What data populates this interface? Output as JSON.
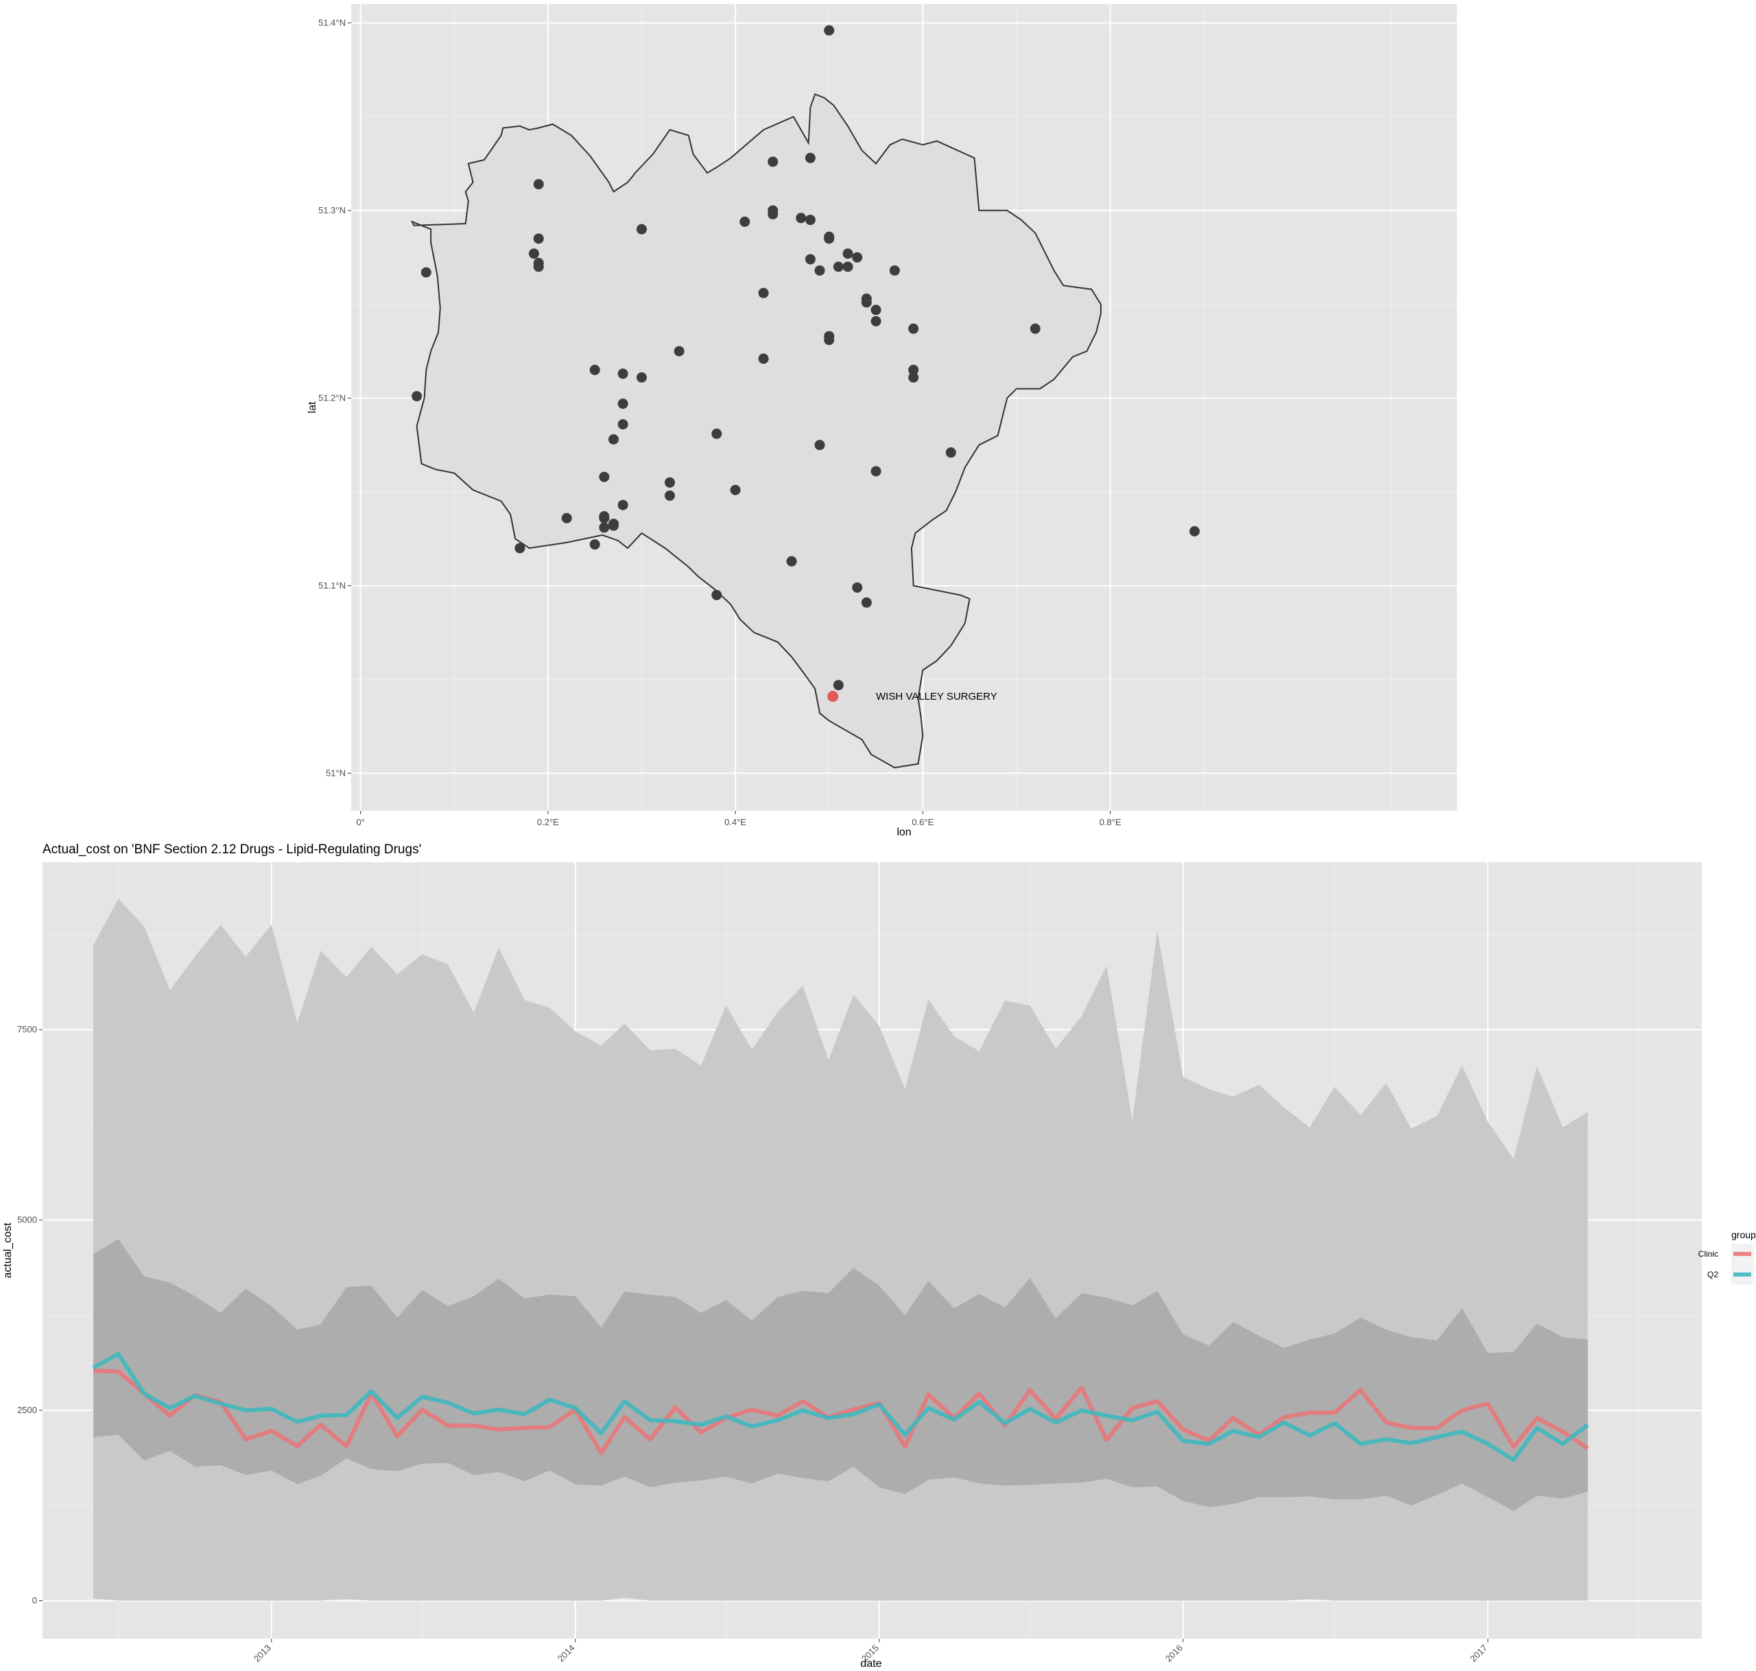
{
  "chart_data": [
    {
      "type": "scatter",
      "xlabel": "lon",
      "ylabel": "lat",
      "xlim": [
        -0.01,
        1.17
      ],
      "ylim": [
        50.98,
        51.41
      ],
      "x_ticks": [
        0,
        0.2,
        0.4,
        0.6,
        0.8
      ],
      "x_tick_labels": [
        "0°",
        "0.2°E",
        "0.4°E",
        "0.6°E",
        "0.8°E"
      ],
      "y_ticks": [
        51.0,
        51.1,
        51.2,
        51.3,
        51.4
      ],
      "y_tick_labels": [
        "51°N",
        "51.1°N",
        "51.2°N",
        "51.3°N",
        "51.4°N"
      ],
      "grid": true,
      "colors": {
        "point": "#3d3d3d",
        "highlight": "#e05a55",
        "outline": "#333333",
        "region_fill": "#dedede"
      },
      "annotation": {
        "text": "WISH VALLEY SURGERY",
        "lon": 0.55,
        "lat": 51.041
      },
      "highlight_point": {
        "lon": 0.504,
        "lat": 51.041
      },
      "boundary": [
        [
          0.065,
          51.165
        ],
        [
          0.06,
          51.185
        ],
        [
          0.068,
          51.2
        ],
        [
          0.07,
          51.215
        ],
        [
          0.075,
          51.225
        ],
        [
          0.083,
          51.235
        ],
        [
          0.085,
          51.248
        ],
        [
          0.082,
          51.265
        ],
        [
          0.075,
          51.283
        ],
        [
          0.075,
          51.29
        ],
        [
          0.055,
          51.294
        ],
        [
          0.057,
          51.292
        ],
        [
          0.112,
          51.293
        ],
        [
          0.115,
          51.305
        ],
        [
          0.112,
          51.31
        ],
        [
          0.12,
          51.315
        ],
        [
          0.115,
          51.325
        ],
        [
          0.132,
          51.327
        ],
        [
          0.15,
          51.34
        ],
        [
          0.152,
          51.344
        ],
        [
          0.17,
          51.345
        ],
        [
          0.18,
          51.343
        ],
        [
          0.19,
          51.344
        ],
        [
          0.205,
          51.346
        ],
        [
          0.225,
          51.34
        ],
        [
          0.245,
          51.329
        ],
        [
          0.265,
          51.315
        ],
        [
          0.27,
          51.31
        ],
        [
          0.285,
          51.315
        ],
        [
          0.29,
          51.318
        ],
        [
          0.293,
          51.32
        ],
        [
          0.312,
          51.33
        ],
        [
          0.33,
          51.343
        ],
        [
          0.35,
          51.34
        ],
        [
          0.355,
          51.33
        ],
        [
          0.37,
          51.32
        ],
        [
          0.38,
          51.323
        ],
        [
          0.395,
          51.328
        ],
        [
          0.43,
          51.343
        ],
        [
          0.462,
          51.35
        ],
        [
          0.478,
          51.336
        ],
        [
          0.48,
          51.355
        ],
        [
          0.485,
          51.362
        ],
        [
          0.495,
          51.36
        ],
        [
          0.505,
          51.356
        ],
        [
          0.52,
          51.345
        ],
        [
          0.535,
          51.332
        ],
        [
          0.55,
          51.325
        ],
        [
          0.565,
          51.335
        ],
        [
          0.578,
          51.338
        ],
        [
          0.6,
          51.335
        ],
        [
          0.615,
          51.337
        ],
        [
          0.655,
          51.328
        ],
        [
          0.66,
          51.3
        ],
        [
          0.69,
          51.3
        ],
        [
          0.705,
          51.295
        ],
        [
          0.72,
          51.288
        ],
        [
          0.74,
          51.268
        ],
        [
          0.75,
          51.26
        ],
        [
          0.78,
          51.258
        ],
        [
          0.79,
          51.25
        ],
        [
          0.79,
          51.245
        ],
        [
          0.785,
          51.235
        ],
        [
          0.775,
          51.225
        ],
        [
          0.76,
          51.222
        ],
        [
          0.74,
          51.21
        ],
        [
          0.725,
          51.205
        ],
        [
          0.7,
          51.205
        ],
        [
          0.69,
          51.2
        ],
        [
          0.685,
          51.19
        ],
        [
          0.68,
          51.18
        ],
        [
          0.66,
          51.175
        ],
        [
          0.645,
          51.163
        ],
        [
          0.635,
          51.15
        ],
        [
          0.625,
          51.14
        ],
        [
          0.61,
          51.135
        ],
        [
          0.592,
          51.128
        ],
        [
          0.588,
          51.12
        ],
        [
          0.59,
          51.1
        ],
        [
          0.64,
          51.095
        ],
        [
          0.65,
          51.093
        ],
        [
          0.645,
          51.08
        ],
        [
          0.63,
          51.068
        ],
        [
          0.615,
          51.06
        ],
        [
          0.6,
          51.055
        ],
        [
          0.595,
          51.04
        ],
        [
          0.598,
          51.03
        ],
        [
          0.6,
          51.02
        ],
        [
          0.595,
          51.005
        ],
        [
          0.57,
          51.003
        ],
        [
          0.545,
          51.01
        ],
        [
          0.535,
          51.018
        ],
        [
          0.5,
          51.028
        ],
        [
          0.49,
          51.032
        ],
        [
          0.485,
          51.045
        ],
        [
          0.475,
          51.052
        ],
        [
          0.46,
          51.062
        ],
        [
          0.445,
          51.07
        ],
        [
          0.42,
          51.075
        ],
        [
          0.405,
          51.082
        ],
        [
          0.395,
          51.09
        ],
        [
          0.378,
          51.098
        ],
        [
          0.36,
          51.105
        ],
        [
          0.35,
          51.11
        ],
        [
          0.325,
          51.12
        ],
        [
          0.3,
          51.128
        ],
        [
          0.285,
          51.12
        ],
        [
          0.275,
          51.124
        ],
        [
          0.258,
          51.127
        ],
        [
          0.22,
          51.123
        ],
        [
          0.18,
          51.12
        ],
        [
          0.165,
          51.125
        ],
        [
          0.16,
          51.138
        ],
        [
          0.15,
          51.145
        ],
        [
          0.12,
          51.151
        ],
        [
          0.1,
          51.16
        ],
        [
          0.08,
          51.162
        ],
        [
          0.065,
          51.165
        ]
      ],
      "points": [
        [
          0.5,
          51.396
        ],
        [
          0.48,
          51.328
        ],
        [
          0.44,
          51.326
        ],
        [
          0.19,
          51.314
        ],
        [
          0.44,
          51.3
        ],
        [
          0.44,
          51.298
        ],
        [
          0.41,
          51.294
        ],
        [
          0.47,
          51.296
        ],
        [
          0.48,
          51.295
        ],
        [
          0.3,
          51.29
        ],
        [
          0.19,
          51.285
        ],
        [
          0.5,
          51.286
        ],
        [
          0.5,
          51.285
        ],
        [
          0.185,
          51.277
        ],
        [
          0.19,
          51.272
        ],
        [
          0.19,
          51.27
        ],
        [
          0.52,
          51.277
        ],
        [
          0.53,
          51.275
        ],
        [
          0.48,
          51.274
        ],
        [
          0.51,
          51.27
        ],
        [
          0.52,
          51.27
        ],
        [
          0.07,
          51.267
        ],
        [
          0.49,
          51.268
        ],
        [
          0.57,
          51.268
        ],
        [
          0.43,
          51.256
        ],
        [
          0.54,
          51.253
        ],
        [
          0.54,
          51.251
        ],
        [
          0.55,
          51.247
        ],
        [
          0.55,
          51.241
        ],
        [
          0.72,
          51.237
        ],
        [
          0.59,
          51.237
        ],
        [
          0.5,
          51.233
        ],
        [
          0.5,
          51.231
        ],
        [
          0.34,
          51.225
        ],
        [
          0.43,
          51.221
        ],
        [
          0.25,
          51.215
        ],
        [
          0.59,
          51.215
        ],
        [
          0.28,
          51.213
        ],
        [
          0.3,
          51.211
        ],
        [
          0.59,
          51.211
        ],
        [
          0.06,
          51.201
        ],
        [
          0.28,
          51.197
        ],
        [
          0.28,
          51.186
        ],
        [
          0.38,
          51.181
        ],
        [
          0.27,
          51.178
        ],
        [
          0.49,
          51.175
        ],
        [
          0.63,
          51.171
        ],
        [
          0.55,
          51.161
        ],
        [
          0.26,
          51.158
        ],
        [
          0.33,
          51.155
        ],
        [
          0.4,
          51.151
        ],
        [
          0.33,
          51.148
        ],
        [
          0.28,
          51.143
        ],
        [
          0.26,
          51.137
        ],
        [
          0.26,
          51.136
        ],
        [
          0.22,
          51.136
        ],
        [
          0.27,
          51.133
        ],
        [
          0.27,
          51.132
        ],
        [
          0.26,
          51.131
        ],
        [
          0.89,
          51.129
        ],
        [
          0.25,
          51.122
        ],
        [
          0.17,
          51.12
        ],
        [
          0.46,
          51.113
        ],
        [
          0.53,
          51.099
        ],
        [
          0.38,
          51.095
        ],
        [
          0.54,
          51.091
        ],
        [
          0.51,
          51.047
        ]
      ]
    },
    {
      "type": "area",
      "title": "Actual_cost on 'BNF Section 2.12 Drugs - Lipid-Regulating Drugs'",
      "xlabel": "date",
      "ylabel": "actual_cost",
      "xlim": [
        "2012-04-01",
        "2017-09-15"
      ],
      "ylim": [
        -500,
        9700
      ],
      "x_tick_labels": [
        "2013",
        "2014",
        "2015",
        "2016",
        "2017"
      ],
      "y_ticks": [
        0,
        2500,
        5000,
        7500
      ],
      "y_tick_labels": [
        "0",
        "2500",
        "5000",
        "7500"
      ],
      "grid": true,
      "legend_position": "right",
      "legend": {
        "title": "group",
        "entries": [
          "Clinic",
          "Q2"
        ]
      },
      "colors": {
        "Clinic": "#e8777a",
        "Q2": "#3fb8bf",
        "outer_band": "#c9c9c9",
        "inner_band": "#adadad"
      },
      "dates": [
        "2012-06-01",
        "2012-07-01",
        "2012-08-01",
        "2012-09-01",
        "2012-10-01",
        "2012-11-01",
        "2012-12-01",
        "2013-01-01",
        "2013-02-01",
        "2013-03-01",
        "2013-04-01",
        "2013-05-01",
        "2013-06-01",
        "2013-07-01",
        "2013-08-01",
        "2013-09-01",
        "2013-10-01",
        "2013-11-01",
        "2013-12-01",
        "2014-01-01",
        "2014-02-01",
        "2014-03-01",
        "2014-04-01",
        "2014-05-01",
        "2014-06-01",
        "2014-07-01",
        "2014-08-01",
        "2014-09-01",
        "2014-10-01",
        "2014-11-01",
        "2014-12-01",
        "2015-01-01",
        "2015-02-01",
        "2015-03-01",
        "2015-04-01",
        "2015-05-01",
        "2015-06-01",
        "2015-07-01",
        "2015-08-01",
        "2015-09-01",
        "2015-10-01",
        "2015-11-01",
        "2015-12-01",
        "2016-01-01",
        "2016-02-01",
        "2016-03-01",
        "2016-04-01",
        "2016-05-01",
        "2016-06-01",
        "2016-07-01",
        "2016-08-01",
        "2016-09-01",
        "2016-10-01",
        "2016-11-01",
        "2016-12-01",
        "2017-01-01",
        "2017-02-01",
        "2017-03-01",
        "2017-04-01",
        "2017-05-01"
      ],
      "series": [
        {
          "name": "Clinic",
          "values": [
            3020,
            3010,
            2720,
            2430,
            2700,
            2610,
            2120,
            2230,
            2030,
            2310,
            2030,
            2720,
            2160,
            2510,
            2300,
            2300,
            2250,
            2270,
            2280,
            2510,
            1940,
            2410,
            2120,
            2540,
            2210,
            2400,
            2510,
            2430,
            2620,
            2410,
            2510,
            2600,
            2020,
            2710,
            2400,
            2720,
            2300,
            2770,
            2390,
            2800,
            2110,
            2530,
            2620,
            2250,
            2100,
            2400,
            2180,
            2410,
            2470,
            2470,
            2770,
            2340,
            2270,
            2270,
            2500,
            2590,
            2020,
            2400,
            2220,
            2000
          ]
        },
        {
          "name": "Q2",
          "values": [
            3060,
            3240,
            2720,
            2530,
            2690,
            2590,
            2500,
            2520,
            2350,
            2430,
            2440,
            2750,
            2400,
            2680,
            2600,
            2460,
            2510,
            2450,
            2640,
            2530,
            2200,
            2620,
            2370,
            2360,
            2310,
            2420,
            2290,
            2370,
            2500,
            2400,
            2450,
            2580,
            2180,
            2530,
            2380,
            2610,
            2330,
            2520,
            2340,
            2500,
            2430,
            2370,
            2480,
            2100,
            2060,
            2230,
            2150,
            2340,
            2170,
            2330,
            2060,
            2120,
            2070,
            2150,
            2220,
            2060,
            1850,
            2270,
            2060,
            2310
          ]
        }
      ],
      "band_outer": {
        "upper": [
          8610,
          9220,
          8860,
          8020,
          8460,
          8880,
          8460,
          8880,
          7590,
          8540,
          8190,
          8590,
          8230,
          8490,
          8360,
          7720,
          8580,
          7890,
          7790,
          7480,
          7290,
          7580,
          7230,
          7250,
          7030,
          7820,
          7240,
          7730,
          8080,
          7100,
          7960,
          7550,
          6720,
          7900,
          7410,
          7220,
          7880,
          7820,
          7250,
          7680,
          8340,
          6310,
          8800,
          6880,
          6720,
          6620,
          6780,
          6480,
          6220,
          6750,
          6380,
          6800,
          6200,
          6370,
          7030,
          6290,
          5800,
          7020,
          6220,
          6420
        ],
        "lower": [
          30,
          0,
          0,
          0,
          0,
          0,
          0,
          0,
          0,
          0,
          20,
          0,
          0,
          0,
          0,
          0,
          0,
          0,
          0,
          0,
          0,
          40,
          0,
          0,
          0,
          0,
          0,
          0,
          0,
          0,
          0,
          0,
          0,
          0,
          0,
          0,
          0,
          0,
          0,
          0,
          0,
          0,
          0,
          0,
          0,
          0,
          0,
          0,
          20,
          0,
          0,
          0,
          0,
          0,
          0,
          0,
          0,
          0,
          0,
          0
        ]
      },
      "band_inner": {
        "upper": [
          4550,
          4750,
          4260,
          4180,
          4000,
          3780,
          4100,
          3870,
          3560,
          3630,
          4120,
          4140,
          3720,
          4080,
          3870,
          4000,
          4230,
          3970,
          4020,
          4000,
          3590,
          4060,
          4020,
          3990,
          3780,
          3950,
          3680,
          3990,
          4070,
          4040,
          4370,
          4140,
          3750,
          4200,
          3840,
          4030,
          3850,
          4240,
          3710,
          4040,
          3980,
          3880,
          4070,
          3500,
          3350,
          3660,
          3480,
          3320,
          3430,
          3510,
          3720,
          3560,
          3460,
          3420,
          3840,
          3250,
          3270,
          3640,
          3460,
          3430
        ],
        "lower": [
          2150,
          2180,
          1840,
          1970,
          1760,
          1780,
          1650,
          1710,
          1530,
          1640,
          1870,
          1730,
          1700,
          1800,
          1810,
          1650,
          1690,
          1570,
          1710,
          1530,
          1510,
          1630,
          1490,
          1550,
          1580,
          1630,
          1540,
          1670,
          1610,
          1570,
          1760,
          1490,
          1400,
          1590,
          1620,
          1540,
          1510,
          1520,
          1540,
          1550,
          1600,
          1490,
          1500,
          1310,
          1230,
          1270,
          1360,
          1360,
          1370,
          1330,
          1330,
          1380,
          1250,
          1390,
          1540,
          1360,
          1180,
          1380,
          1340,
          1430
        ]
      }
    }
  ]
}
